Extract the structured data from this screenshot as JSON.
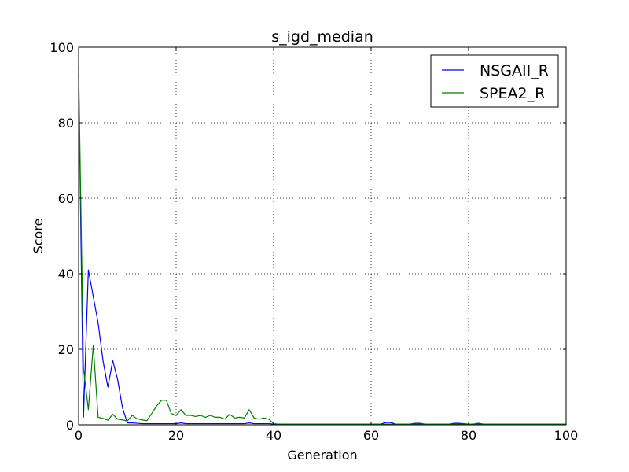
{
  "chart_data": {
    "type": "line",
    "title": "s_igd_median",
    "xlabel": "Generation",
    "ylabel": "Score",
    "xlim": [
      0,
      100
    ],
    "ylim": [
      0,
      100
    ],
    "xticks": [
      0,
      20,
      40,
      60,
      80,
      100
    ],
    "yticks": [
      0,
      20,
      40,
      60,
      80,
      100
    ],
    "grid": true,
    "legend_position": "top-right",
    "x": [
      0,
      1,
      2,
      3,
      4,
      5,
      6,
      7,
      8,
      9,
      10,
      11,
      12,
      13,
      14,
      15,
      16,
      17,
      18,
      19,
      20,
      21,
      22,
      23,
      24,
      25,
      26,
      27,
      28,
      29,
      30,
      31,
      32,
      33,
      34,
      35,
      36,
      37,
      38,
      39,
      40,
      41,
      42,
      43,
      44,
      45,
      46,
      47,
      48,
      49,
      50,
      51,
      52,
      53,
      54,
      55,
      56,
      57,
      58,
      59,
      60,
      61,
      62,
      63,
      64,
      65,
      66,
      67,
      68,
      69,
      70,
      71,
      72,
      73,
      74,
      75,
      76,
      77,
      78,
      79,
      80,
      81,
      82,
      83,
      84,
      85,
      86,
      87,
      88,
      89,
      90,
      91,
      92,
      93,
      94,
      95,
      96,
      97,
      98,
      99,
      100
    ],
    "series": [
      {
        "name": "NSGAII_R",
        "color": "#0000ff",
        "values": [
          93,
          2,
          41,
          34,
          27,
          17,
          10,
          17,
          12,
          4.5,
          0.5,
          0.5,
          0.4,
          0.3,
          0.3,
          0.3,
          0.3,
          0.3,
          0.3,
          0.3,
          0.3,
          0.5,
          0.3,
          0.3,
          0.3,
          0.3,
          0.3,
          0.3,
          0.3,
          0.3,
          0.3,
          0.3,
          0.3,
          0.3,
          0.3,
          0.5,
          0.3,
          0.3,
          0.3,
          0.3,
          0.2,
          0.2,
          0.2,
          0.2,
          0.2,
          0.2,
          0.2,
          0.2,
          0.2,
          0.2,
          0.2,
          0.2,
          0.2,
          0.2,
          0.2,
          0.2,
          0.2,
          0.2,
          0.2,
          0.2,
          0.2,
          0.2,
          0.2,
          0.6,
          0.6,
          0.2,
          0.2,
          0.2,
          0.2,
          0.4,
          0.4,
          0.2,
          0.2,
          0.2,
          0.2,
          0.2,
          0.2,
          0.4,
          0.4,
          0.3,
          0.2,
          0.2,
          0.4,
          0.2,
          0.2,
          0.2,
          0.2,
          0.2,
          0.2,
          0.2,
          0.2,
          0.2,
          0.2,
          0.2,
          0.2,
          0.2,
          0.2,
          0.2,
          0.2,
          0.2,
          0.2
        ]
      },
      {
        "name": "SPEA2_R",
        "color": "#008000",
        "values": [
          95,
          15,
          4,
          21,
          2,
          1.7,
          1.2,
          2.8,
          1.5,
          1.3,
          1.0,
          2.5,
          1.6,
          1.3,
          1.1,
          3.0,
          5.0,
          6.5,
          6.5,
          3.0,
          2.5,
          4.0,
          2.5,
          2.5,
          2.2,
          2.5,
          2.0,
          2.5,
          2.0,
          2.0,
          1.5,
          2.8,
          1.8,
          2.0,
          1.8,
          4.0,
          1.8,
          1.5,
          1.8,
          1.5,
          0.3,
          0.2,
          0.2,
          0.2,
          0.2,
          0.2,
          0.2,
          0.2,
          0.2,
          0.2,
          0.2,
          0.2,
          0.2,
          0.2,
          0.2,
          0.2,
          0.2,
          0.2,
          0.2,
          0.2,
          0.2,
          0.2,
          0.2,
          0.2,
          0.2,
          0.2,
          0.2,
          0.2,
          0.2,
          0.2,
          0.2,
          0.2,
          0.2,
          0.2,
          0.2,
          0.2,
          0.2,
          0.2,
          0.2,
          0.2,
          0.2,
          0.2,
          0.2,
          0.2,
          0.2,
          0.2,
          0.2,
          0.2,
          0.2,
          0.2,
          0.2,
          0.2,
          0.2,
          0.2,
          0.2,
          0.2,
          0.2,
          0.2,
          0.2,
          0.2,
          0.2
        ]
      }
    ]
  }
}
